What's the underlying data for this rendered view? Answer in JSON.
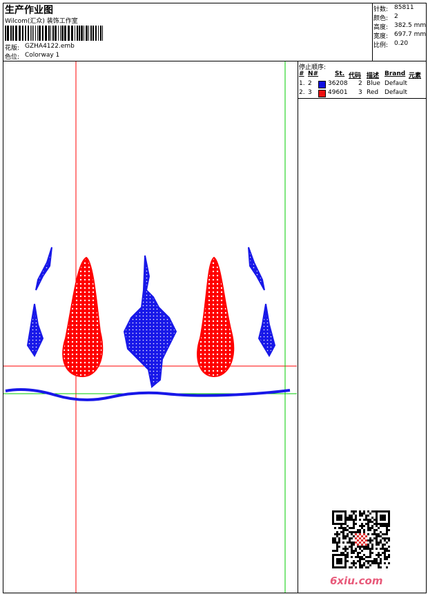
{
  "header": {
    "title": "生产作业图",
    "subtitle": "Wilcom(汇众) 装饰工作室",
    "design_label": "花版:",
    "design": "GZHA4122.emb",
    "colorway_label": "色位:",
    "colorway": "Colorway 1"
  },
  "stats": [
    {
      "label": "针数:",
      "value": "85811"
    },
    {
      "label": "颜色:",
      "value": "2"
    },
    {
      "label": "高度:",
      "value": "382.5 mm"
    },
    {
      "label": "宽度:",
      "value": "697.7 mm"
    },
    {
      "label": "比例:",
      "value": "0.20"
    }
  ],
  "stop_sequence": {
    "title": "停止顺序:",
    "columns": [
      "#",
      "N#",
      "St.",
      "代码",
      "描述",
      "Brand",
      "元素"
    ],
    "rows": [
      {
        "index": "1.",
        "needle": "2",
        "color": "#1010e0",
        "stitches": "36208",
        "code": "2",
        "description": "Blue",
        "brand": "Default"
      },
      {
        "index": "2.",
        "needle": "3",
        "color": "#ee1010",
        "stitches": "49601",
        "code": "3",
        "description": "Red",
        "brand": "Default"
      }
    ]
  },
  "watermark": "6xiu.com"
}
